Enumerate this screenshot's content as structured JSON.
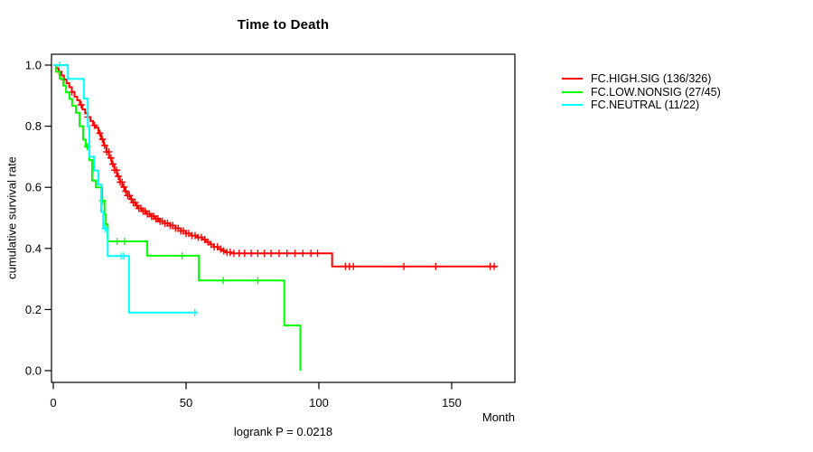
{
  "chart_data": {
    "type": "line",
    "variant": "kaplan-meier-step",
    "title": "Time to Death",
    "xlabel": "Month",
    "ylabel": "cumulative survival rate",
    "annotation": "logrank P = 0.0218",
    "xlim": [
      0,
      175
    ],
    "ylim": [
      0.0,
      1.0
    ],
    "x_ticks": [
      0,
      50,
      100,
      150
    ],
    "y_ticks": [
      0.0,
      0.2,
      0.4,
      0.6,
      0.8,
      1.0
    ],
    "grid": false,
    "legend_position": "right-outside",
    "series": [
      {
        "name": "FC.HIGH.SIG",
        "label": "FC.HIGH.SIG (136/326)",
        "events": 136,
        "total": 326,
        "color": "#ff0000",
        "end": 167,
        "steps": [
          [
            0,
            1.0
          ],
          [
            1,
            0.99
          ],
          [
            2,
            0.978
          ],
          [
            3,
            0.966
          ],
          [
            4,
            0.953
          ],
          [
            5,
            0.941
          ],
          [
            6,
            0.928
          ],
          [
            7,
            0.912
          ],
          [
            8,
            0.897
          ],
          [
            9,
            0.885
          ],
          [
            10,
            0.87
          ],
          [
            11,
            0.855
          ],
          [
            12,
            0.842
          ],
          [
            13,
            0.83
          ],
          [
            14,
            0.817
          ],
          [
            15,
            0.803
          ],
          [
            16,
            0.795
          ],
          [
            17,
            0.777
          ],
          [
            18,
            0.757
          ],
          [
            19,
            0.737
          ],
          [
            20,
            0.716
          ],
          [
            21,
            0.696
          ],
          [
            22,
            0.676
          ],
          [
            23,
            0.656
          ],
          [
            24,
            0.636
          ],
          [
            25,
            0.617
          ],
          [
            26,
            0.601
          ],
          [
            27,
            0.587
          ],
          [
            28,
            0.573
          ],
          [
            29,
            0.561
          ],
          [
            30,
            0.55
          ],
          [
            31,
            0.54
          ],
          [
            32,
            0.531
          ],
          [
            33.5,
            0.522
          ],
          [
            35,
            0.513
          ],
          [
            36.5,
            0.505
          ],
          [
            38,
            0.497
          ],
          [
            40,
            0.489
          ],
          [
            42,
            0.482
          ],
          [
            44,
            0.475
          ],
          [
            46,
            0.466
          ],
          [
            48,
            0.457
          ],
          [
            50,
            0.449
          ],
          [
            52,
            0.442
          ],
          [
            54,
            0.436
          ],
          [
            56,
            0.429
          ],
          [
            57.5,
            0.421
          ],
          [
            59,
            0.413
          ],
          [
            60.5,
            0.405
          ],
          [
            62,
            0.398
          ],
          [
            63.5,
            0.392
          ],
          [
            65,
            0.387
          ],
          [
            67,
            0.384
          ],
          [
            105,
            0.341
          ]
        ],
        "censors": [
          2.2,
          4,
          7,
          10.5,
          13,
          15.5,
          17.5,
          18.5,
          19.3,
          20.1,
          20.9,
          21.7,
          22.4,
          23.1,
          23.8,
          24.5,
          25.2,
          25.9,
          26.6,
          27.3,
          28,
          28.7,
          29.4,
          30.1,
          30.8,
          31.5,
          32.2,
          33,
          33.8,
          34.6,
          35.4,
          36.2,
          37,
          37.8,
          38.6,
          39.4,
          40.2,
          41,
          42,
          43,
          44,
          45,
          46,
          47,
          48,
          49,
          50,
          51,
          52.2,
          53.4,
          54.6,
          55.8,
          57,
          58.2,
          59.4,
          60.6,
          61.8,
          63,
          64.2,
          65.4,
          66.6,
          68,
          70,
          72,
          74.5,
          77,
          79.5,
          82,
          85,
          88,
          91,
          94,
          97,
          99.5,
          110,
          111.5,
          113,
          132,
          144,
          164.5,
          166
        ]
      },
      {
        "name": "FC.LOW.NONSIG",
        "label": "FC.LOW.NONSIG (27/45)",
        "events": 27,
        "total": 45,
        "color": "#00ff00",
        "end": 93,
        "steps": [
          [
            0,
            1.0
          ],
          [
            1,
            0.978
          ],
          [
            2.4,
            0.956
          ],
          [
            3.7,
            0.933
          ],
          [
            4.8,
            0.911
          ],
          [
            6.1,
            0.889
          ],
          [
            7.1,
            0.867
          ],
          [
            8.5,
            0.844
          ],
          [
            9.9,
            0.8
          ],
          [
            11.2,
            0.756
          ],
          [
            12.2,
            0.733
          ],
          [
            13.6,
            0.689
          ],
          [
            14.6,
            0.622
          ],
          [
            16,
            0.6
          ],
          [
            18.4,
            0.556
          ],
          [
            19.3,
            0.511
          ],
          [
            19.8,
            0.479
          ],
          [
            20.5,
            0.423
          ],
          [
            35.4,
            0.376
          ],
          [
            54.8,
            0.295
          ],
          [
            87,
            0.148
          ],
          [
            93,
            0.0
          ]
        ],
        "censors": [
          12.8,
          18.6,
          24,
          26.8,
          48.5,
          64,
          77
        ]
      },
      {
        "name": "FC.NEUTRAL",
        "label": "FC.NEUTRAL (11/22)",
        "events": 11,
        "total": 22,
        "color": "#00ffff",
        "end": 54,
        "steps": [
          [
            0,
            1.0
          ],
          [
            5.5,
            0.955
          ],
          [
            11.5,
            0.891
          ],
          [
            13,
            0.8
          ],
          [
            13.6,
            0.7
          ],
          [
            15.3,
            0.655
          ],
          [
            17,
            0.609
          ],
          [
            18,
            0.52
          ],
          [
            18.8,
            0.465
          ],
          [
            20.5,
            0.375
          ],
          [
            28.5,
            0.19
          ]
        ],
        "censors": [
          2.3,
          19.6,
          25.5,
          26.6,
          53.3
        ]
      }
    ]
  }
}
